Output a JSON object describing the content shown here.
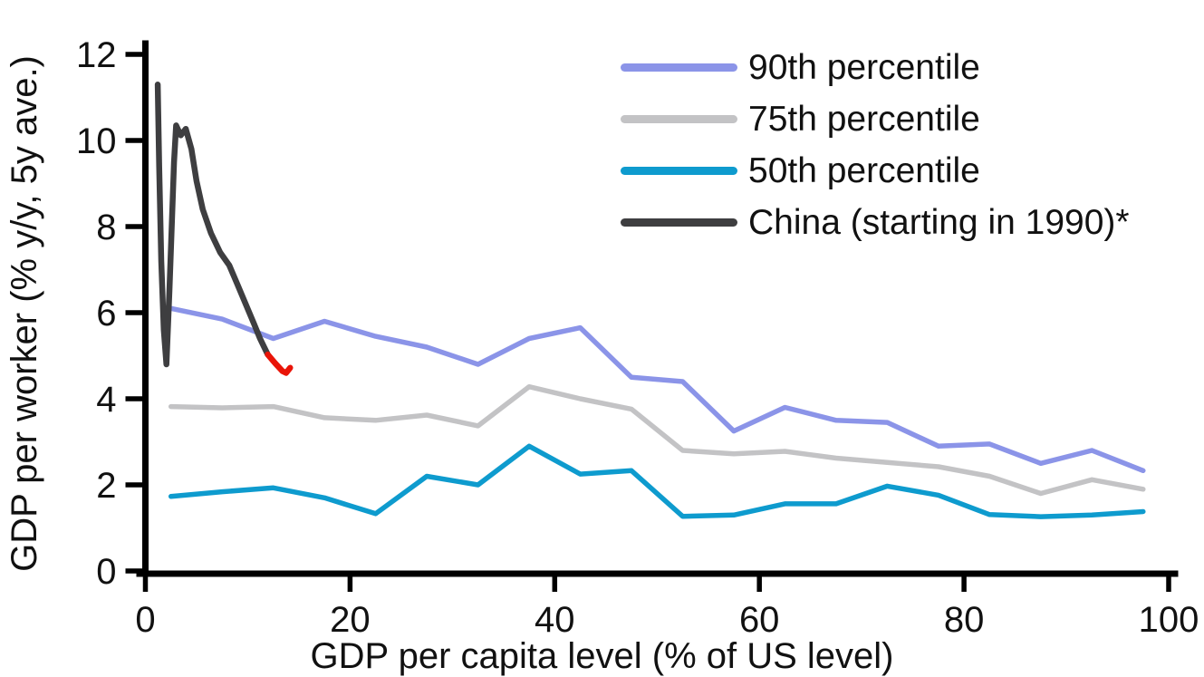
{
  "chart_data": {
    "type": "line",
    "title": "",
    "xlabel": "GDP per capita level (% of US level)",
    "ylabel": "GDP per worker (% y/y, 5y ave.)",
    "xlim": [
      0,
      100
    ],
    "ylim": [
      0,
      12
    ],
    "xticks": [
      0,
      20,
      40,
      60,
      80,
      100
    ],
    "yticks": [
      0,
      2,
      4,
      6,
      8,
      10,
      12
    ],
    "grid": false,
    "legend_position": "top-right-inside",
    "axis_color": "#000000",
    "series": [
      {
        "id": "p90",
        "name": "90th percentile",
        "color": "#8b94e8",
        "stroke_width": 5.5,
        "points": [
          [
            2.5,
            6.1
          ],
          [
            7.5,
            5.85
          ],
          [
            12.5,
            5.4
          ],
          [
            17.5,
            5.8
          ],
          [
            22.5,
            5.45
          ],
          [
            27.5,
            5.2
          ],
          [
            32.5,
            4.8
          ],
          [
            37.5,
            5.4
          ],
          [
            42.5,
            5.65
          ],
          [
            47.5,
            4.5
          ],
          [
            52.5,
            4.4
          ],
          [
            57.5,
            3.25
          ],
          [
            62.5,
            3.8
          ],
          [
            67.5,
            3.5
          ],
          [
            72.5,
            3.45
          ],
          [
            77.5,
            2.9
          ],
          [
            82.5,
            2.95
          ],
          [
            87.5,
            2.5
          ],
          [
            92.5,
            2.8
          ],
          [
            97.5,
            2.33
          ]
        ]
      },
      {
        "id": "p75",
        "name": "75th percentile",
        "color": "#c3c3c5",
        "stroke_width": 5.5,
        "points": [
          [
            2.5,
            3.82
          ],
          [
            7.5,
            3.79
          ],
          [
            12.5,
            3.82
          ],
          [
            17.5,
            3.56
          ],
          [
            22.5,
            3.5
          ],
          [
            27.5,
            3.62
          ],
          [
            32.5,
            3.37
          ],
          [
            37.5,
            4.28
          ],
          [
            42.5,
            4.0
          ],
          [
            47.5,
            3.76
          ],
          [
            52.5,
            2.8
          ],
          [
            57.5,
            2.72
          ],
          [
            62.5,
            2.78
          ],
          [
            67.5,
            2.62
          ],
          [
            72.5,
            2.52
          ],
          [
            77.5,
            2.42
          ],
          [
            82.5,
            2.2
          ],
          [
            87.5,
            1.8
          ],
          [
            92.5,
            2.12
          ],
          [
            97.5,
            1.9
          ]
        ]
      },
      {
        "id": "p50",
        "name": "50th percentile",
        "color": "#0e9bce",
        "stroke_width": 5.5,
        "points": [
          [
            2.5,
            1.73
          ],
          [
            7.5,
            1.84
          ],
          [
            12.5,
            1.93
          ],
          [
            17.5,
            1.7
          ],
          [
            22.5,
            1.33
          ],
          [
            27.5,
            2.2
          ],
          [
            32.5,
            2.0
          ],
          [
            37.5,
            2.9
          ],
          [
            42.5,
            2.25
          ],
          [
            47.5,
            2.33
          ],
          [
            52.5,
            1.27
          ],
          [
            57.5,
            1.3
          ],
          [
            62.5,
            1.56
          ],
          [
            67.5,
            1.56
          ],
          [
            72.5,
            1.97
          ],
          [
            77.5,
            1.76
          ],
          [
            82.5,
            1.31
          ],
          [
            87.5,
            1.26
          ],
          [
            92.5,
            1.3
          ],
          [
            97.5,
            1.38
          ]
        ]
      },
      {
        "id": "china",
        "name": "China (starting in 1990)*",
        "color": "#3e3e40",
        "stroke_width": 6.5,
        "points": [
          [
            1.2,
            11.3
          ],
          [
            1.35,
            9.4
          ],
          [
            1.55,
            7.2
          ],
          [
            1.8,
            5.6
          ],
          [
            2.05,
            4.8
          ],
          [
            2.35,
            6.5
          ],
          [
            2.6,
            8.2
          ],
          [
            2.8,
            9.5
          ],
          [
            3.0,
            10.35
          ],
          [
            3.45,
            10.12
          ],
          [
            3.95,
            10.27
          ],
          [
            4.5,
            9.8
          ],
          [
            5.0,
            9.05
          ],
          [
            5.6,
            8.4
          ],
          [
            6.4,
            7.85
          ],
          [
            7.3,
            7.4
          ],
          [
            8.2,
            7.1
          ],
          [
            9.0,
            6.65
          ],
          [
            9.8,
            6.2
          ],
          [
            10.6,
            5.75
          ],
          [
            11.2,
            5.4
          ],
          [
            11.95,
            5.03
          ]
        ]
      },
      {
        "id": "china-recent-red",
        "name": "",
        "color": "#e91408",
        "stroke_width": 6.5,
        "points": [
          [
            11.95,
            5.03
          ],
          [
            12.7,
            4.82
          ],
          [
            13.4,
            4.64
          ],
          [
            13.75,
            4.6
          ],
          [
            14.15,
            4.72
          ]
        ]
      }
    ]
  }
}
